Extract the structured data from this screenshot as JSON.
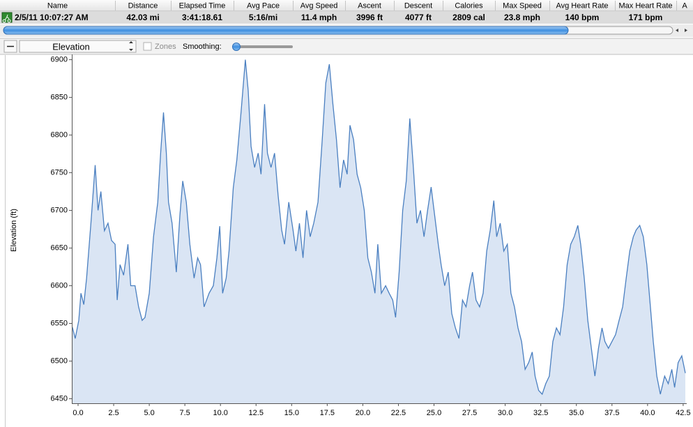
{
  "table": {
    "columns": [
      "Name",
      "Distance",
      "Elapsed Time",
      "Avg Pace",
      "Avg Speed",
      "Ascent",
      "Descent",
      "Calories",
      "Max Speed",
      "Avg Heart Rate",
      "Max Heart Rate",
      "A"
    ],
    "row": [
      "2/5/11 10:07:27 AM",
      "42.03 mi",
      "3:41:18.61",
      "5:16/mi",
      "11.4 mph",
      "3996 ft",
      "4077 ft",
      "2809 cal",
      "23.8 mph",
      "140 bpm",
      "171 bpm",
      ""
    ]
  },
  "toolbar": {
    "dropdown": "Elevation",
    "zones": "Zones",
    "smoothing": "Smoothing:"
  },
  "chart_data": {
    "type": "area",
    "y_label": "Elevation (ft)",
    "color": "#4a7fc0",
    "fill": "#dae5f4",
    "xlim": [
      -0.44,
      42.75
    ],
    "ylim": [
      6444,
      6907
    ],
    "xticks": [
      {
        "value": 0,
        "label": "0.0"
      },
      2.5,
      {
        "value": 5,
        "label": "5.0"
      },
      7.5,
      {
        "value": 10,
        "label": "10.0"
      },
      12.5,
      {
        "value": 15,
        "label": "15.0"
      },
      17.5,
      {
        "value": 20,
        "label": "20.0"
      },
      22.5,
      {
        "value": 25,
        "label": "25.0"
      },
      27.5,
      {
        "value": 30,
        "label": "30.0"
      },
      32.5,
      {
        "value": 35,
        "label": "35.0"
      },
      37.5,
      {
        "value": 40,
        "label": "40.0"
      },
      42.5
    ],
    "yticks": [
      6450,
      6500,
      6550,
      6600,
      6650,
      6700,
      6750,
      6800,
      6850,
      6900
    ],
    "x": [
      -0.4,
      -0.2,
      0.05,
      0.2,
      0.4,
      0.6,
      0.9,
      1.2,
      1.4,
      1.6,
      1.85,
      2.1,
      2.35,
      2.6,
      2.75,
      2.95,
      3.2,
      3.5,
      3.7,
      4.0,
      4.25,
      4.5,
      4.7,
      5.0,
      5.3,
      5.6,
      5.8,
      6.0,
      6.2,
      6.35,
      6.6,
      6.9,
      7.15,
      7.35,
      7.6,
      7.85,
      8.15,
      8.4,
      8.6,
      8.85,
      9.2,
      9.5,
      9.75,
      9.95,
      10.15,
      10.4,
      10.6,
      10.9,
      11.15,
      11.45,
      11.75,
      11.95,
      12.15,
      12.4,
      12.65,
      12.85,
      13.1,
      13.3,
      13.55,
      13.8,
      14.05,
      14.3,
      14.5,
      14.8,
      15.1,
      15.3,
      15.55,
      15.8,
      16.05,
      16.3,
      16.55,
      16.85,
      17.15,
      17.4,
      17.65,
      17.9,
      18.15,
      18.4,
      18.65,
      18.9,
      19.1,
      19.35,
      19.6,
      19.85,
      20.1,
      20.35,
      20.6,
      20.85,
      21.05,
      21.3,
      21.6,
      21.85,
      22.1,
      22.3,
      22.55,
      22.8,
      23.05,
      23.3,
      23.55,
      23.8,
      24.05,
      24.3,
      24.55,
      24.8,
      25.05,
      25.3,
      25.5,
      25.75,
      26.0,
      26.25,
      26.5,
      26.75,
      27.0,
      27.25,
      27.5,
      27.7,
      27.95,
      28.2,
      28.45,
      28.7,
      28.95,
      29.2,
      29.4,
      29.65,
      29.9,
      30.15,
      30.4,
      30.65,
      30.9,
      31.15,
      31.4,
      31.65,
      31.9,
      32.1,
      32.35,
      32.6,
      32.85,
      33.1,
      33.35,
      33.6,
      33.85,
      34.1,
      34.35,
      34.6,
      34.85,
      35.1,
      35.3,
      35.55,
      35.8,
      36.05,
      36.3,
      36.55,
      36.8,
      37.0,
      37.25,
      37.5,
      37.75,
      38.0,
      38.25,
      38.5,
      38.75,
      39.0,
      39.2,
      39.45,
      39.7,
      39.95,
      40.2,
      40.4,
      40.65,
      40.9,
      41.2,
      41.45,
      41.7,
      41.9,
      42.15,
      42.4,
      42.65
    ],
    "values": [
      6545,
      6530,
      6554,
      6590,
      6575,
      6610,
      6683,
      6760,
      6700,
      6725,
      6673,
      6683,
      6660,
      6655,
      6581,
      6628,
      6614,
      6655,
      6600,
      6600,
      6572,
      6554,
      6558,
      6590,
      6665,
      6711,
      6776,
      6830,
      6776,
      6711,
      6683,
      6618,
      6693,
      6739,
      6711,
      6655,
      6610,
      6637,
      6628,
      6572,
      6590,
      6600,
      6637,
      6679,
      6590,
      6610,
      6646,
      6730,
      6767,
      6831,
      6900,
      6859,
      6785,
      6757,
      6776,
      6748,
      6841,
      6776,
      6757,
      6776,
      6720,
      6674,
      6655,
      6711,
      6674,
      6646,
      6683,
      6637,
      6700,
      6665,
      6683,
      6711,
      6794,
      6869,
      6894,
      6841,
      6794,
      6730,
      6767,
      6748,
      6813,
      6794,
      6748,
      6730,
      6700,
      6637,
      6618,
      6590,
      6655,
      6590,
      6600,
      6590,
      6581,
      6558,
      6618,
      6700,
      6739,
      6822,
      6757,
      6683,
      6700,
      6665,
      6700,
      6731,
      6693,
      6655,
      6628,
      6600,
      6618,
      6563,
      6544,
      6530,
      6581,
      6572,
      6600,
      6618,
      6581,
      6572,
      6590,
      6646,
      6674,
      6713,
      6665,
      6683,
      6646,
      6655,
      6590,
      6572,
      6544,
      6526,
      6489,
      6498,
      6512,
      6480,
      6461,
      6456,
      6470,
      6480,
      6526,
      6544,
      6535,
      6572,
      6628,
      6655,
      6665,
      6680,
      6655,
      6610,
      6554,
      6517,
      6480,
      6517,
      6544,
      6526,
      6517,
      6526,
      6535,
      6554,
      6572,
      6610,
      6646,
      6665,
      6674,
      6680,
      6665,
      6628,
      6572,
      6526,
      6480,
      6456,
      6480,
      6470,
      6489,
      6465,
      6498,
      6507,
      6484
    ]
  }
}
